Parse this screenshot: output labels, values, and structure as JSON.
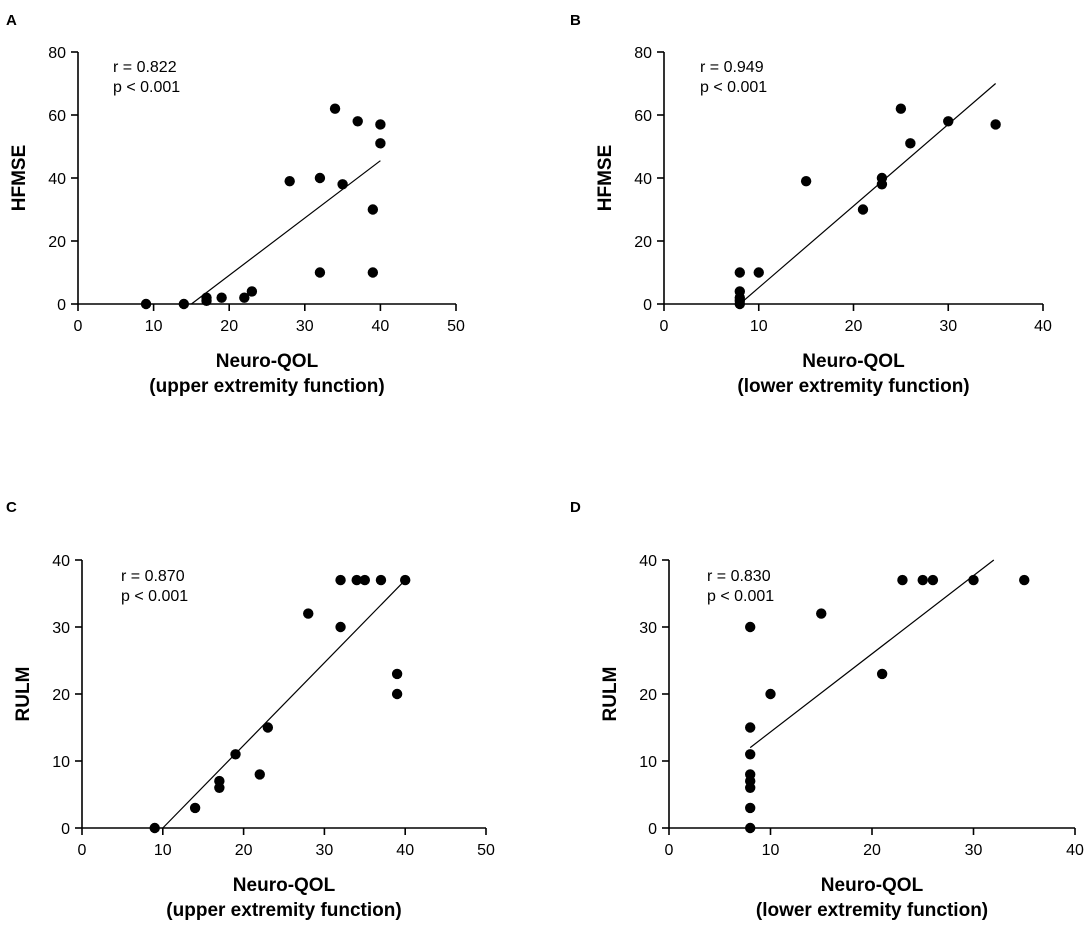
{
  "chart_data": [
    {
      "panel": "A",
      "type": "scatter",
      "xlabel_line1": "Neuro-QOL",
      "xlabel_line2": "(upper extremity function)",
      "ylabel": "HFMSE",
      "xlim": [
        0,
        50
      ],
      "ylim": [
        0,
        80
      ],
      "xticks": [
        0,
        10,
        20,
        30,
        40,
        50
      ],
      "yticks": [
        0,
        20,
        40,
        60,
        80
      ],
      "annotation_r": "r = 0.822",
      "annotation_p": "p < 0.001",
      "points": [
        [
          9,
          0
        ],
        [
          14,
          0
        ],
        [
          17,
          1
        ],
        [
          17,
          2
        ],
        [
          19,
          2
        ],
        [
          22,
          2
        ],
        [
          23,
          4
        ],
        [
          28,
          39
        ],
        [
          32,
          40
        ],
        [
          32,
          10
        ],
        [
          34,
          62
        ],
        [
          35,
          38
        ],
        [
          37,
          58
        ],
        [
          39,
          30
        ],
        [
          39,
          10
        ],
        [
          40,
          57
        ],
        [
          40,
          51
        ]
      ],
      "fit_line": [
        [
          15,
          0
        ],
        [
          40,
          45.5
        ]
      ]
    },
    {
      "panel": "B",
      "type": "scatter",
      "xlabel_line1": "Neuro-QOL",
      "xlabel_line2": "(lower extremity function)",
      "ylabel": "HFMSE",
      "xlim": [
        0,
        40
      ],
      "ylim": [
        0,
        80
      ],
      "xticks": [
        0,
        10,
        20,
        30,
        40
      ],
      "yticks": [
        0,
        20,
        40,
        60,
        80
      ],
      "annotation_r": "r = 0.949",
      "annotation_p": "p < 0.001",
      "points": [
        [
          8,
          0
        ],
        [
          8,
          1
        ],
        [
          8,
          2
        ],
        [
          8,
          4
        ],
        [
          8,
          10
        ],
        [
          10,
          10
        ],
        [
          15,
          39
        ],
        [
          21,
          30
        ],
        [
          23,
          40
        ],
        [
          23,
          38
        ],
        [
          25,
          62
        ],
        [
          26,
          51
        ],
        [
          30,
          58
        ],
        [
          35,
          57
        ]
      ],
      "fit_line": [
        [
          8,
          0
        ],
        [
          35,
          70
        ]
      ]
    },
    {
      "panel": "C",
      "type": "scatter",
      "xlabel_line1": "Neuro-QOL",
      "xlabel_line2": "(upper extremity function)",
      "ylabel": "RULM",
      "xlim": [
        0,
        50
      ],
      "ylim": [
        0,
        40
      ],
      "xticks": [
        0,
        10,
        20,
        30,
        40,
        50
      ],
      "yticks": [
        0,
        10,
        20,
        30,
        40
      ],
      "annotation_r": "r = 0.870",
      "annotation_p": "p < 0.001",
      "points": [
        [
          9,
          0
        ],
        [
          14,
          3
        ],
        [
          17,
          6
        ],
        [
          17,
          7
        ],
        [
          19,
          11
        ],
        [
          22,
          8
        ],
        [
          23,
          15
        ],
        [
          28,
          32
        ],
        [
          32,
          30
        ],
        [
          32,
          37
        ],
        [
          34,
          37
        ],
        [
          35,
          37
        ],
        [
          37,
          37
        ],
        [
          39,
          23
        ],
        [
          39,
          20
        ],
        [
          40,
          37
        ]
      ],
      "fit_line": [
        [
          10,
          0
        ],
        [
          40,
          37
        ]
      ]
    },
    {
      "panel": "D",
      "type": "scatter",
      "xlabel_line1": "Neuro-QOL",
      "xlabel_line2": "(lower extremity function)",
      "ylabel": "RULM",
      "xlim": [
        0,
        40
      ],
      "ylim": [
        0,
        40
      ],
      "xticks": [
        0,
        10,
        20,
        30,
        40
      ],
      "yticks": [
        0,
        10,
        20,
        30,
        40
      ],
      "annotation_r": "r = 0.830",
      "annotation_p": "p < 0.001",
      "points": [
        [
          8,
          0
        ],
        [
          8,
          3
        ],
        [
          8,
          6
        ],
        [
          8,
          7
        ],
        [
          8,
          8
        ],
        [
          8,
          11
        ],
        [
          8,
          15
        ],
        [
          8,
          30
        ],
        [
          10,
          20
        ],
        [
          15,
          32
        ],
        [
          21,
          23
        ],
        [
          23,
          37
        ],
        [
          25,
          37
        ],
        [
          26,
          37
        ],
        [
          30,
          37
        ],
        [
          35,
          37
        ]
      ],
      "fit_line": [
        [
          8,
          12
        ],
        [
          32,
          40
        ]
      ]
    }
  ]
}
